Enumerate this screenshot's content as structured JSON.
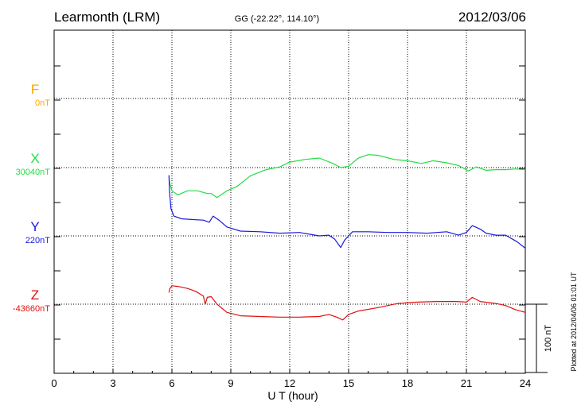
{
  "header": {
    "station": "Learmonth (LRM)",
    "coords": "GG (-22.22°, 114.10°)",
    "date": "2012/03/06"
  },
  "footer": {
    "plotted": "Plotted at 2012/04/06 01:01 UT",
    "scale_label": "100 nT"
  },
  "chart_data": {
    "type": "line",
    "xlabel": "U T (hour)",
    "xlim": [
      0,
      24
    ],
    "xticks": [
      0,
      3,
      6,
      9,
      12,
      15,
      18,
      21,
      24
    ],
    "unit": "nT",
    "scale_bar_nT": 100,
    "grid": true,
    "series": [
      {
        "name": "F",
        "baseline_label": "0nT",
        "color": "#ffa500",
        "points": []
      },
      {
        "name": "X",
        "baseline_label": "30040nT",
        "color": "#22dd44",
        "points": [
          [
            5.85,
            -13
          ],
          [
            5.9,
            -24
          ],
          [
            6.0,
            -34
          ],
          [
            6.3,
            -40
          ],
          [
            6.8,
            -34
          ],
          [
            7.3,
            -34
          ],
          [
            7.8,
            -38
          ],
          [
            8.0,
            -38
          ],
          [
            8.3,
            -44
          ],
          [
            8.8,
            -34
          ],
          [
            9.3,
            -28
          ],
          [
            10.0,
            -12
          ],
          [
            10.8,
            -3
          ],
          [
            11.5,
            1
          ],
          [
            12.0,
            8
          ],
          [
            12.8,
            12
          ],
          [
            13.5,
            14
          ],
          [
            14.2,
            6
          ],
          [
            14.6,
            0
          ],
          [
            15.0,
            2
          ],
          [
            15.5,
            14
          ],
          [
            16.0,
            19
          ],
          [
            16.5,
            18
          ],
          [
            17.3,
            12
          ],
          [
            18.0,
            10
          ],
          [
            18.7,
            6
          ],
          [
            19.3,
            10
          ],
          [
            20.0,
            7
          ],
          [
            20.6,
            3
          ],
          [
            21.1,
            -5
          ],
          [
            21.5,
            1
          ],
          [
            22.0,
            -4
          ],
          [
            22.5,
            -3
          ],
          [
            23.0,
            -3
          ],
          [
            23.5,
            -2
          ],
          [
            24.0,
            -3
          ]
        ]
      },
      {
        "name": "Y",
        "baseline_label": "220nT",
        "color": "#1a1adc",
        "points": [
          [
            5.85,
            89
          ],
          [
            5.88,
            65
          ],
          [
            5.95,
            40
          ],
          [
            6.1,
            29
          ],
          [
            6.5,
            25
          ],
          [
            7.0,
            24
          ],
          [
            7.6,
            23
          ],
          [
            7.9,
            20
          ],
          [
            8.1,
            29
          ],
          [
            8.4,
            23
          ],
          [
            8.8,
            13
          ],
          [
            9.5,
            7
          ],
          [
            10.5,
            6
          ],
          [
            11.5,
            4
          ],
          [
            12.5,
            5
          ],
          [
            13.5,
            0
          ],
          [
            14.0,
            1
          ],
          [
            14.3,
            -5
          ],
          [
            14.6,
            -17
          ],
          [
            14.8,
            -6
          ],
          [
            15.2,
            6
          ],
          [
            16.0,
            6
          ],
          [
            17.0,
            5
          ],
          [
            18.0,
            5
          ],
          [
            19.0,
            4
          ],
          [
            19.5,
            5
          ],
          [
            20.0,
            6
          ],
          [
            20.6,
            1
          ],
          [
            21.0,
            5
          ],
          [
            21.3,
            15
          ],
          [
            21.7,
            10
          ],
          [
            22.0,
            4
          ],
          [
            22.5,
            1
          ],
          [
            23.0,
            1
          ],
          [
            23.6,
            -9
          ],
          [
            24.0,
            -18
          ]
        ]
      },
      {
        "name": "Z",
        "baseline_label": "-43660nT",
        "color": "#e01010",
        "points": [
          [
            5.85,
            17
          ],
          [
            5.9,
            23
          ],
          [
            6.0,
            27
          ],
          [
            6.3,
            26
          ],
          [
            6.8,
            23
          ],
          [
            7.2,
            19
          ],
          [
            7.6,
            12
          ],
          [
            7.7,
            0
          ],
          [
            7.8,
            10
          ],
          [
            8.0,
            11
          ],
          [
            8.3,
            0
          ],
          [
            8.8,
            -12
          ],
          [
            9.5,
            -17
          ],
          [
            10.5,
            -18
          ],
          [
            11.5,
            -19
          ],
          [
            12.5,
            -19
          ],
          [
            13.5,
            -18
          ],
          [
            14.0,
            -15
          ],
          [
            14.4,
            -19
          ],
          [
            14.7,
            -23
          ],
          [
            15.0,
            -15
          ],
          [
            15.5,
            -10
          ],
          [
            16.5,
            -5
          ],
          [
            17.5,
            1
          ],
          [
            18.5,
            3
          ],
          [
            19.5,
            4
          ],
          [
            20.5,
            4
          ],
          [
            21.0,
            3
          ],
          [
            21.3,
            10
          ],
          [
            21.7,
            4
          ],
          [
            22.5,
            1
          ],
          [
            23.0,
            -2
          ],
          [
            23.5,
            -8
          ],
          [
            24.0,
            -12
          ]
        ]
      }
    ]
  }
}
